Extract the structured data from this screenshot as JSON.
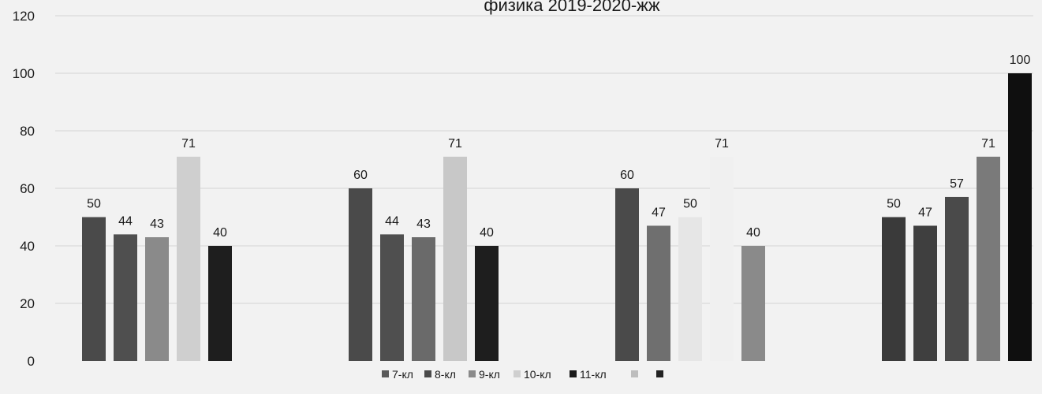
{
  "chart_data": {
    "type": "bar",
    "title": "физика 2019-2020-жж",
    "xlabel": "",
    "ylabel": "",
    "ylim": [
      0,
      120
    ],
    "yticks": [
      0,
      20,
      40,
      60,
      80,
      100,
      120
    ],
    "grid": true,
    "legend_position": "bottom",
    "groups": [
      [
        50,
        44,
        43,
        71,
        40
      ],
      [
        60,
        44,
        43,
        71,
        40
      ],
      [
        60,
        47,
        50,
        71,
        40
      ],
      [
        50,
        47,
        57,
        71,
        100
      ]
    ],
    "group_colors": [
      [
        "#4a4a4a",
        "#4f4f4f",
        "#8a8a8a",
        "#cfcfcf",
        "#1e1e1e"
      ],
      [
        "#4a4a4a",
        "#4f4f4f",
        "#6a6a6a",
        "#c8c8c8",
        "#1e1e1e"
      ],
      [
        "#4a4a4a",
        "#6f6f6f",
        "#e6e6e6",
        "#f0f0f0",
        "#8a8a8a"
      ],
      [
        "#3a3a3a",
        "#3f3f3f",
        "#4a4a4a",
        "#7a7a7a",
        "#0f0f0f"
      ]
    ],
    "legend": [
      {
        "label": "7-кл",
        "color": "#5a5a5a"
      },
      {
        "label": "8-кл",
        "color": "#4a4a4a"
      },
      {
        "label": "9-кл",
        "color": "#8a8a8a"
      },
      {
        "label": "10-кл",
        "color": "#cfcfcf"
      },
      {
        "label": "11-кл",
        "color": "#1a1a1a"
      },
      {
        "label": "",
        "color": "#bdbdbd"
      },
      {
        "label": "",
        "color": "#222222"
      }
    ]
  }
}
